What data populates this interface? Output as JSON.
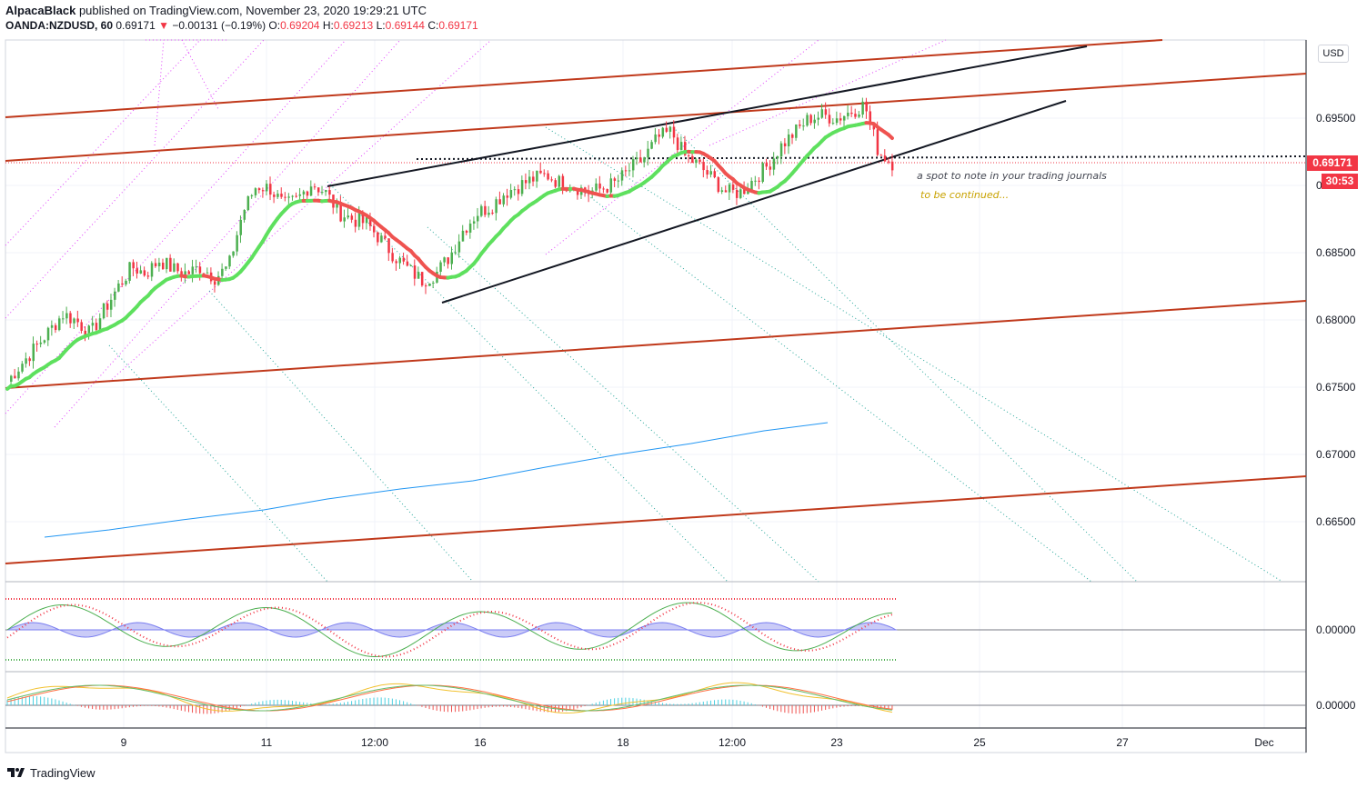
{
  "header": {
    "author": "AlpacaBlack",
    "published": "published on TradingView.com, November 23, 2020 19:29:21 UTC",
    "symbol": "OANDA:NZDUSD, 60",
    "last": "0.69171",
    "change": "−0.00131 (−0.19%)",
    "o_label": "O:",
    "o_val": "0.69204",
    "h_label": "H:",
    "h_val": "0.69213",
    "l_label": "L:",
    "l_val": "0.69144",
    "c_label": "C:",
    "c_val": "0.69171"
  },
  "currency_button": "USD",
  "price_tag": "0.69171",
  "countdown_tag": "30:53",
  "annotations": {
    "note": "a spot to note in your trading journals",
    "continued": "to be continued..."
  },
  "footer": {
    "brand": "TradingView"
  },
  "colors": {
    "up": "#4caf50",
    "down": "#f23645",
    "ma_up": "#5ee05e",
    "ma_down": "#ef5350",
    "channel": "#c0391b",
    "fib_pink": "#e040fb",
    "fib_teal": "#26a69a",
    "blue": "#2196f3"
  },
  "chart_data": {
    "type": "candlestick",
    "symbol": "OANDA:NZDUSD",
    "timeframe": "60",
    "y_ticks": [
      "0.69500",
      "0.69000",
      "0.68500",
      "0.68000",
      "0.67500",
      "0.67000",
      "0.66500"
    ],
    "y_range": [
      0.6618,
      0.701
    ],
    "x_ticks": [
      "9",
      "11",
      "12:00",
      "16",
      "18",
      "12:00",
      "23",
      "25",
      "27",
      "Dec"
    ],
    "close_path": [
      0.6755,
      0.6768,
      0.678,
      0.6792,
      0.6805,
      0.68,
      0.679,
      0.6808,
      0.6825,
      0.684,
      0.6835,
      0.6845,
      0.6838,
      0.6835,
      0.684,
      0.6832,
      0.684,
      0.688,
      0.69,
      0.6898,
      0.6885,
      0.689,
      0.6902,
      0.6895,
      0.688,
      0.6875,
      0.6872,
      0.686,
      0.6848,
      0.6838,
      0.683,
      0.6835,
      0.6848,
      0.6868,
      0.688,
      0.6885,
      0.6895,
      0.69,
      0.6905,
      0.6908,
      0.6902,
      0.69,
      0.6895,
      0.6898,
      0.6902,
      0.6912,
      0.692,
      0.6935,
      0.694,
      0.6922,
      0.6915,
      0.6905,
      0.6895,
      0.6895,
      0.6905,
      0.6915,
      0.693,
      0.694,
      0.695,
      0.6952,
      0.695,
      0.6955,
      0.696,
      0.6925,
      0.6917
    ],
    "oscillator_zero": "0.00000",
    "oscillator2_zero": "0.00000"
  }
}
